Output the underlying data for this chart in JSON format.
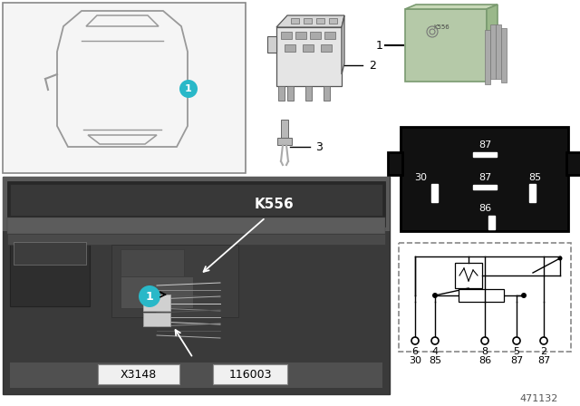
{
  "bg_color": "#ffffff",
  "teal_color": "#29b8c8",
  "relay_green": "#b5c9a8",
  "relay_green2": "#c8d9b8",
  "black": "#000000",
  "white": "#ffffff",
  "gray_dark": "#555555",
  "gray_med": "#888888",
  "gray_light": "#cccccc",
  "photo_dark": "#4a4a4a",
  "photo_mid": "#606060",
  "photo_light": "#787878",
  "k556": "K556",
  "x3148": "X3148",
  "part_num": "116003",
  "fig_num": "471132",
  "label1": "1",
  "label2": "2",
  "label3": "3"
}
